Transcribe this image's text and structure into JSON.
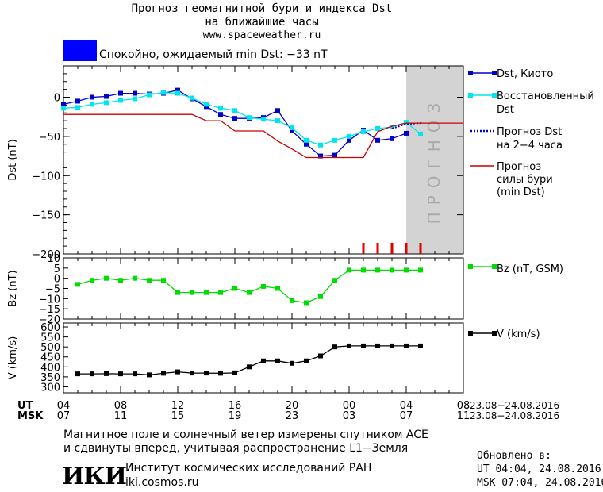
{
  "header": {
    "title_line1": "Прогноз геомагнитной бури и индекса Dst",
    "title_line2": "на ближайшие часы",
    "site": "www.spaceweather.ru",
    "status_text": "Спокойно, ожидаемый min Dst: −33 nT",
    "status_color": "#0000ff"
  },
  "chart_data": [
    {
      "type": "line",
      "ylabel": "Dst (nT)",
      "ylim": [
        -200,
        40
      ],
      "yticks": [
        "0",
        "−50",
        "−100",
        "−150",
        "−200"
      ],
      "x_range": [
        0,
        28
      ],
      "forecast_shading": {
        "from": 24,
        "to": 28,
        "label": "ПРОГНОЗ",
        "color": "#d3d3d3"
      },
      "forecast_ticks_x": [
        21,
        22,
        23,
        24,
        25
      ],
      "series": [
        {
          "name": "Dst, Киото",
          "color": "#0000cc",
          "marker": "square",
          "x": [
            0,
            1,
            2,
            3,
            4,
            5,
            6,
            7,
            8,
            9,
            10,
            11,
            12,
            13,
            14,
            15,
            16,
            17,
            18,
            19,
            20,
            21,
            22,
            23,
            24
          ],
          "y": [
            -9,
            -5,
            0,
            1,
            5,
            5,
            4,
            5,
            9,
            -2,
            -12,
            -22,
            -27,
            -27,
            -26,
            -17,
            -43,
            -60,
            -75,
            -74,
            -55,
            -42,
            -55,
            -53,
            -46
          ]
        },
        {
          "name": "Восстановленный Dst",
          "color": "#00e5ee",
          "marker": "square",
          "x": [
            0,
            1,
            2,
            3,
            4,
            5,
            6,
            7,
            8,
            9,
            10,
            11,
            12,
            13,
            14,
            15,
            16,
            17,
            18,
            19,
            20,
            21,
            22,
            23,
            24,
            25
          ],
          "y": [
            -14,
            -13,
            -9,
            -7,
            -4,
            -2,
            3,
            6,
            5,
            -1,
            -9,
            -14,
            -17,
            -26,
            -28,
            -30,
            -39,
            -55,
            -61,
            -55,
            -50,
            -44,
            -40,
            -38,
            -32,
            -47
          ]
        },
        {
          "name": "Прогноз Dst на 2-4 часа",
          "color": "#0000cc",
          "dash": true,
          "x": [
            23,
            24,
            25
          ],
          "y": [
            -40,
            -34,
            -33
          ]
        },
        {
          "name": "Прогноз силы бури (min Dst)",
          "color": "#cc0000",
          "step": true,
          "x": [
            0,
            9,
            10,
            11,
            12,
            14,
            15,
            16,
            17,
            21,
            22,
            23,
            24,
            28
          ],
          "y": [
            -22,
            -22,
            -30,
            -30,
            -43,
            -43,
            -56,
            -66,
            -77,
            -77,
            -44,
            -37,
            -33,
            -33
          ]
        }
      ]
    },
    {
      "type": "line",
      "ylabel": "Bz (nT)",
      "ylim": [
        -20,
        10
      ],
      "yticks": [
        "10",
        "5",
        "0",
        "−5",
        "−10",
        "−15",
        "−20"
      ],
      "x_range": [
        0,
        28
      ],
      "series": [
        {
          "name": "Bz (nT, GSM)",
          "color": "#00dd00",
          "marker": "square",
          "x": [
            1,
            2,
            3,
            4,
            5,
            6,
            7,
            8,
            9,
            10,
            11,
            12,
            13,
            14,
            15,
            16,
            17,
            18,
            19,
            20,
            21,
            22,
            23,
            24,
            25
          ],
          "y": [
            -3,
            -1,
            0,
            -1,
            0,
            -1,
            -1,
            -7,
            -7,
            -7,
            -7,
            -5,
            -7,
            -4,
            -5,
            -11,
            -12,
            -9,
            -1,
            4,
            4,
            4,
            4,
            4,
            4
          ]
        }
      ]
    },
    {
      "type": "line",
      "ylabel": "V (km/s)",
      "ylim": [
        270,
        620
      ],
      "yticks": [
        "600",
        "550",
        "500",
        "450",
        "400",
        "350",
        "300"
      ],
      "x_range": [
        0,
        28
      ],
      "series": [
        {
          "name": "V (km/s)",
          "color": "#000000",
          "marker": "square",
          "x": [
            1,
            2,
            3,
            4,
            5,
            6,
            7,
            8,
            9,
            10,
            11,
            12,
            13,
            14,
            15,
            16,
            17,
            18,
            19,
            20,
            21,
            22,
            23,
            24,
            25
          ],
          "y": [
            365,
            365,
            366,
            365,
            365,
            360,
            368,
            375,
            369,
            369,
            368,
            370,
            400,
            430,
            430,
            418,
            430,
            455,
            500,
            505,
            505,
            505,
            505,
            505,
            505
          ]
        }
      ]
    }
  ],
  "x_axis": {
    "ut_label": "UT",
    "msk_label": "MSK",
    "ut_ticks": [
      "04",
      "08",
      "12",
      "16",
      "20",
      "00",
      "04",
      "08"
    ],
    "msk_ticks": [
      "07",
      "11",
      "15",
      "19",
      "23",
      "03",
      "07",
      "11"
    ],
    "ut_date_range": "23.08−24.08.2016",
    "msk_date_range": "23.08−24.08.2016"
  },
  "legend": {
    "dst_kyoto": "Dst, Киото",
    "restored_line1": "Восстановленный",
    "restored_line2": "Dst",
    "forecast_line1": "Прогноз Dst",
    "forecast_line2": "на 2−4 часа",
    "storm_line1": "Прогноз",
    "storm_line2": "силы бури",
    "storm_line3": "(min Dst)",
    "bz": "Bz (nT, GSM)",
    "v": "V (km/s)"
  },
  "footer": {
    "note_line1": "Магнитное поле и солнечный ветер измерены спутником ACE",
    "note_line2": "и сдвинуты вперед, учитывая распространение L1−Земля",
    "logo_text": "ИКИ",
    "institute": "Институт космических исследований РАН",
    "institute_site": "iki.cosmos.ru",
    "updated_label": "Обновлено в:",
    "updated_ut": "UT   04:04, 24.08.2016",
    "updated_msk": "MSK 07:04, 24.08.2016"
  }
}
